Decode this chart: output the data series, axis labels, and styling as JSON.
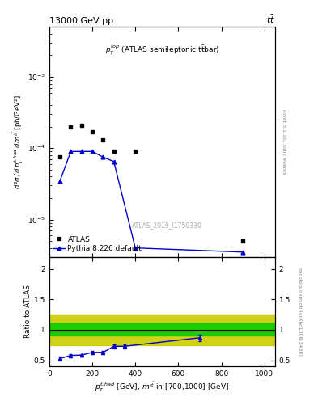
{
  "title_left": "13000 GeV pp",
  "title_right": "tt̅",
  "annotation": "$p_T^{top}$ (ATLAS semileptonic t$\\bar{t}$bar)",
  "watermark": "ATLAS_2019_I1750330",
  "right_label_top": "Rivet 3.1.10, 300k events",
  "right_label_bottom": "mcplots.cern.ch [arXiv:1306.3436]",
  "ylim_main": [
    3e-06,
    0.005
  ],
  "ylim_ratio": [
    0.4,
    2.2
  ],
  "atlas_x": [
    50,
    100,
    150,
    200,
    250,
    300,
    400,
    900
  ],
  "atlas_y": [
    7.5e-05,
    0.0002,
    0.00021,
    0.00017,
    0.00013,
    9e-05,
    9e-05,
    5e-06
  ],
  "mc_x": [
    50,
    100,
    150,
    200,
    250,
    300,
    400,
    900
  ],
  "mc_y": [
    3.5e-05,
    9e-05,
    9e-05,
    9e-05,
    7.5e-05,
    6.5e-05,
    4e-06,
    3.5e-06
  ],
  "ratio_x": [
    50,
    100,
    150,
    200,
    250,
    300,
    350,
    700
  ],
  "ratio_y": [
    0.53,
    0.58,
    0.585,
    0.63,
    0.63,
    0.73,
    0.73,
    0.87
  ],
  "ratio_yerr": [
    0.03,
    0.02,
    0.02,
    0.02,
    0.02,
    0.03,
    0.03,
    0.05
  ],
  "band_green": [
    0.9,
    1.1
  ],
  "band_yellow": [
    0.75,
    1.25
  ],
  "xlim": [
    0,
    1050
  ],
  "mc_color": "#0000cc",
  "data_color": "black",
  "band_green_color": "#00cc00",
  "band_yellow_color": "#cccc00"
}
